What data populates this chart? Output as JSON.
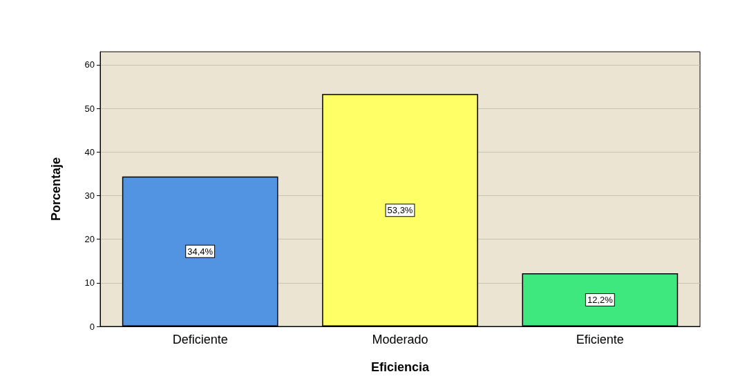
{
  "chart_data": {
    "type": "bar",
    "xlabel": "Eficiencia",
    "ylabel": "Porcentaje",
    "categories": [
      "Deficiente",
      "Moderado",
      "Eficiente"
    ],
    "values": [
      34.4,
      53.3,
      12.2
    ],
    "colors": [
      "#5294e2",
      "#ffff66",
      "#3fe87f"
    ],
    "value_labels": [
      "34,4%",
      "53,3%",
      "12,2%"
    ],
    "ylim": [
      0,
      63
    ],
    "yticks": [
      0,
      10,
      20,
      30,
      40,
      50,
      60
    ],
    "grid": "y"
  }
}
